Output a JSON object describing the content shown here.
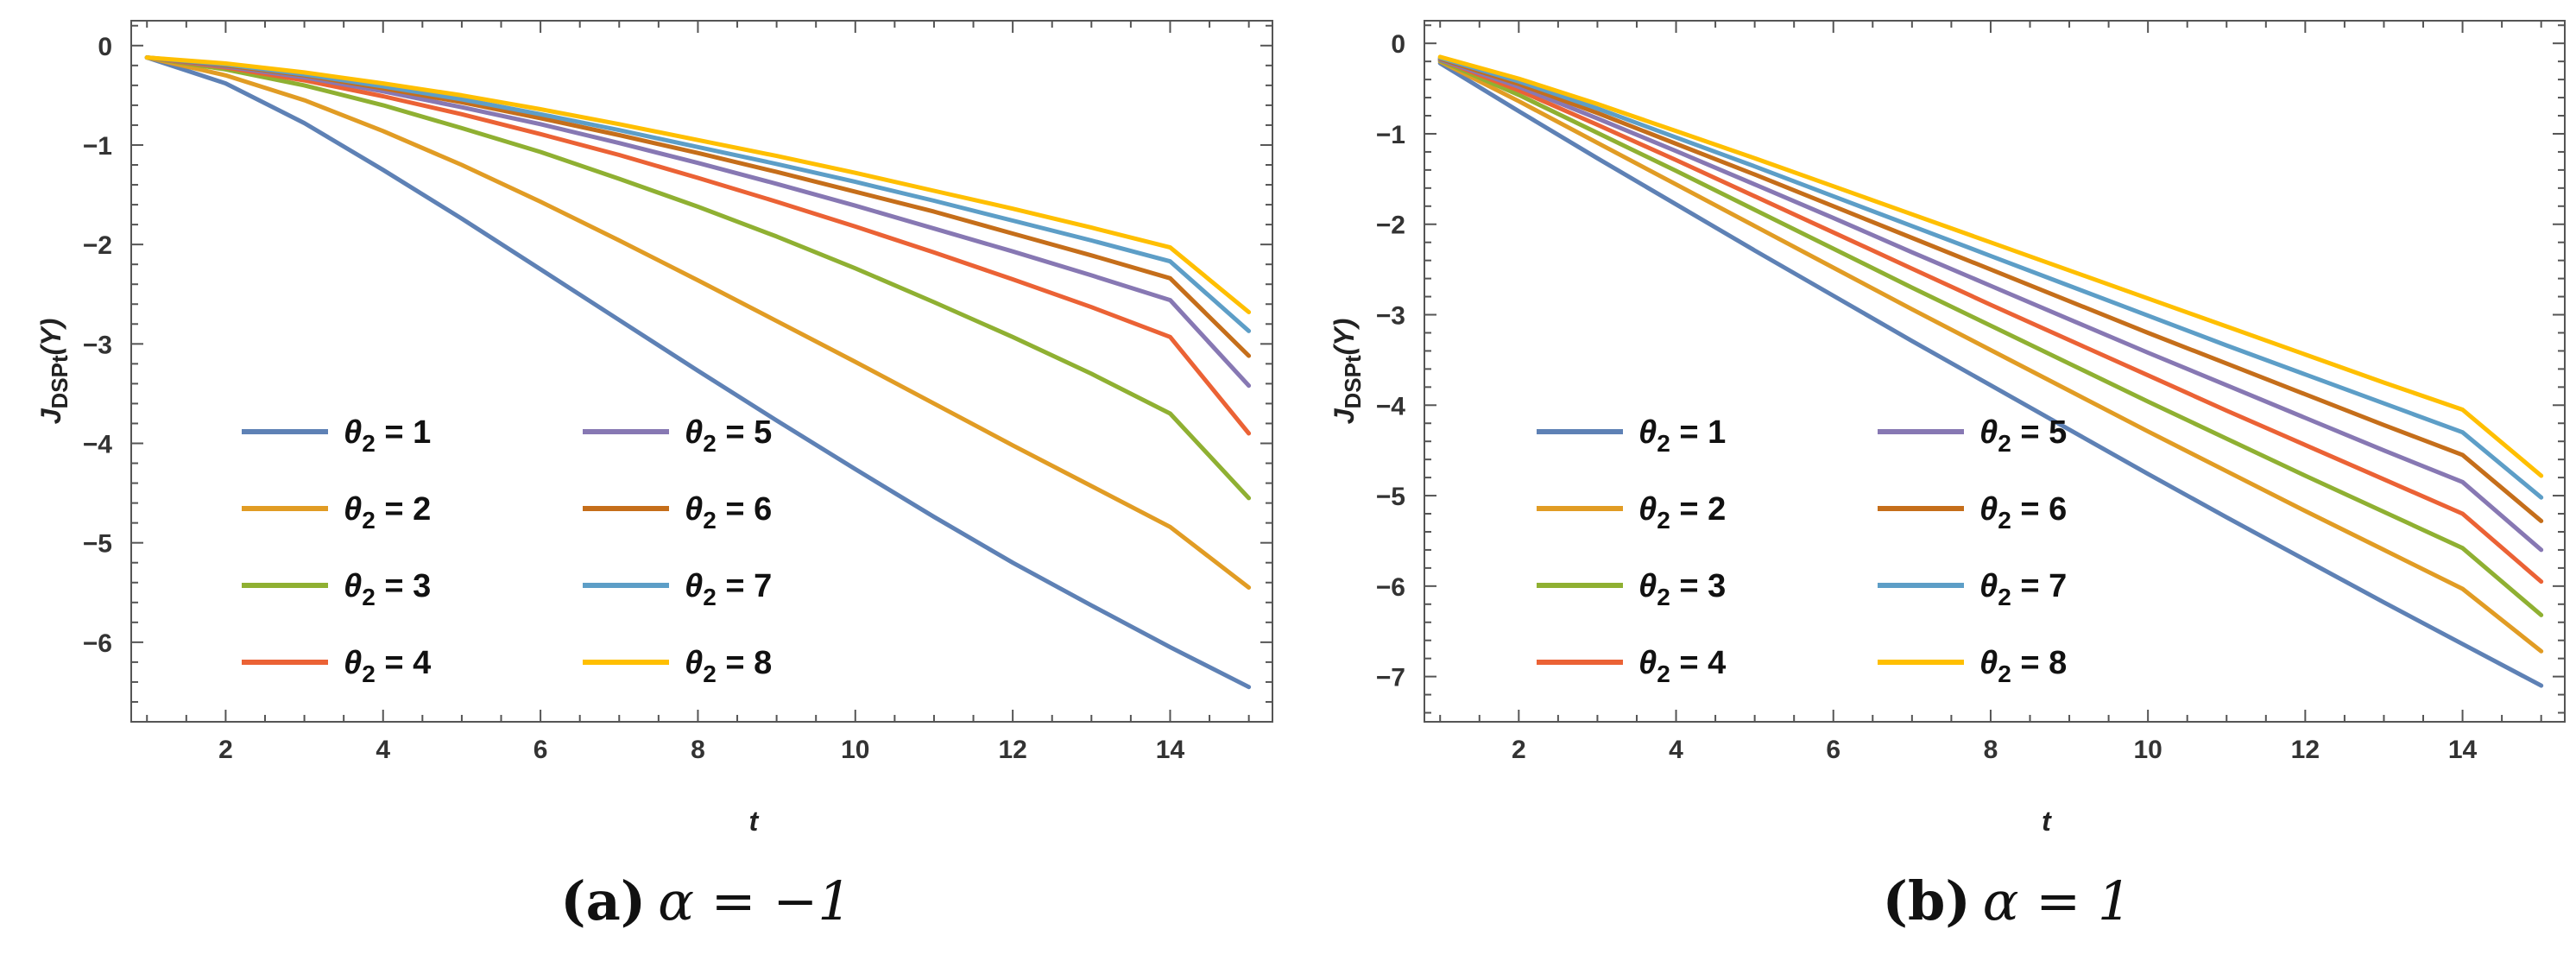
{
  "chart_data": [
    {
      "type": "line",
      "caption_letter": "(a)",
      "caption_math": "α = −1",
      "xlabel": "t",
      "ylabel_main": "J",
      "ylabel_sub": "DSPt",
      "ylabel_arg": "(Y)",
      "xlim": [
        0.8,
        15.3
      ],
      "ylim": [
        -6.8,
        0.25
      ],
      "xticks": [
        2,
        4,
        6,
        8,
        10,
        12,
        14
      ],
      "yticks": [
        0,
        -1,
        -2,
        -3,
        -4,
        -5,
        -6
      ],
      "x": [
        1,
        2,
        3,
        4,
        5,
        6,
        7,
        8,
        9,
        10,
        11,
        12,
        13,
        14,
        15
      ],
      "series": [
        {
          "name": "θ2 = 1",
          "symbol": "θ",
          "sub": "2",
          "eq": " = 1",
          "color": "#5e81b5",
          "values": [
            -0.12,
            -0.38,
            -0.78,
            -1.25,
            -1.74,
            -2.25,
            -2.76,
            -3.27,
            -3.77,
            -4.26,
            -4.74,
            -5.2,
            -5.63,
            -6.05,
            -6.45
          ]
        },
        {
          "name": "θ2 = 2",
          "symbol": "θ",
          "sub": "2",
          "eq": " = 2",
          "color": "#e19c24",
          "values": [
            -0.12,
            -0.3,
            -0.55,
            -0.86,
            -1.2,
            -1.57,
            -1.96,
            -2.36,
            -2.77,
            -3.18,
            -3.6,
            -4.02,
            -4.43,
            -4.84,
            -5.45
          ]
        },
        {
          "name": "θ2 = 3",
          "symbol": "θ",
          "sub": "2",
          "eq": " = 3",
          "color": "#8fb032",
          "values": [
            -0.12,
            -0.24,
            -0.4,
            -0.6,
            -0.83,
            -1.07,
            -1.34,
            -1.62,
            -1.92,
            -2.24,
            -2.58,
            -2.93,
            -3.3,
            -3.7,
            -4.55
          ]
        },
        {
          "name": "θ2 = 4",
          "symbol": "θ",
          "sub": "2",
          "eq": " = 4",
          "color": "#eb6235",
          "values": [
            -0.12,
            -0.22,
            -0.35,
            -0.51,
            -0.69,
            -0.89,
            -1.1,
            -1.33,
            -1.57,
            -1.82,
            -2.08,
            -2.35,
            -2.63,
            -2.93,
            -3.9
          ]
        },
        {
          "name": "θ2 = 5",
          "symbol": "θ",
          "sub": "2",
          "eq": " = 5",
          "color": "#8778b3",
          "values": [
            -0.12,
            -0.21,
            -0.32,
            -0.46,
            -0.62,
            -0.79,
            -0.98,
            -1.18,
            -1.39,
            -1.61,
            -1.84,
            -2.07,
            -2.31,
            -2.56,
            -3.42
          ]
        },
        {
          "name": "θ2 = 6",
          "symbol": "θ",
          "sub": "2",
          "eq": " = 6",
          "color": "#c56e1a",
          "values": [
            -0.12,
            -0.2,
            -0.3,
            -0.43,
            -0.57,
            -0.73,
            -0.9,
            -1.08,
            -1.27,
            -1.47,
            -1.67,
            -1.89,
            -2.11,
            -2.34,
            -3.12
          ]
        },
        {
          "name": "θ2 = 7",
          "symbol": "θ",
          "sub": "2",
          "eq": " = 7",
          "color": "#5d9ec7",
          "values": [
            -0.12,
            -0.19,
            -0.29,
            -0.41,
            -0.54,
            -0.69,
            -0.85,
            -1.02,
            -1.19,
            -1.37,
            -1.56,
            -1.76,
            -1.96,
            -2.17,
            -2.87
          ]
        },
        {
          "name": "θ2 = 8",
          "symbol": "θ",
          "sub": "2",
          "eq": " = 8",
          "color": "#ffbf00",
          "values": [
            -0.12,
            -0.18,
            -0.27,
            -0.38,
            -0.5,
            -0.64,
            -0.79,
            -0.95,
            -1.11,
            -1.28,
            -1.46,
            -1.64,
            -1.83,
            -2.03,
            -2.68
          ]
        }
      ]
    },
    {
      "type": "line",
      "caption_letter": "(b)",
      "caption_math": "α = 1",
      "xlabel": "t",
      "ylabel_main": "J",
      "ylabel_sub": "DSPt",
      "ylabel_arg": "(Y)",
      "xlim": [
        0.8,
        15.3
      ],
      "ylim": [
        -7.5,
        0.25
      ],
      "xticks": [
        2,
        4,
        6,
        8,
        10,
        12,
        14
      ],
      "yticks": [
        0,
        -1,
        -2,
        -3,
        -4,
        -5,
        -6,
        -7
      ],
      "x": [
        1,
        2,
        3,
        4,
        5,
        6,
        7,
        8,
        9,
        10,
        11,
        12,
        13,
        14,
        15
      ],
      "series": [
        {
          "name": "θ2 = 1",
          "symbol": "θ",
          "sub": "2",
          "eq": " = 1",
          "color": "#5e81b5",
          "values": [
            -0.22,
            -0.75,
            -1.27,
            -1.78,
            -2.29,
            -2.79,
            -3.29,
            -3.78,
            -4.27,
            -4.76,
            -5.24,
            -5.71,
            -6.18,
            -6.64,
            -7.1
          ]
        },
        {
          "name": "θ2 = 2",
          "symbol": "θ",
          "sub": "2",
          "eq": " = 2",
          "color": "#e19c24",
          "values": [
            -0.2,
            -0.64,
            -1.1,
            -1.56,
            -2.02,
            -2.48,
            -2.94,
            -3.39,
            -3.84,
            -4.29,
            -4.73,
            -5.17,
            -5.6,
            -6.03,
            -6.72
          ]
        },
        {
          "name": "θ2 = 3",
          "symbol": "θ",
          "sub": "2",
          "eq": " = 3",
          "color": "#8fb032",
          "values": [
            -0.19,
            -0.57,
            -0.99,
            -1.41,
            -1.84,
            -2.27,
            -2.7,
            -3.12,
            -3.54,
            -3.96,
            -4.37,
            -4.78,
            -5.18,
            -5.58,
            -6.32
          ]
        },
        {
          "name": "θ2 = 4",
          "symbol": "θ",
          "sub": "2",
          "eq": " = 4",
          "color": "#eb6235",
          "values": [
            -0.18,
            -0.52,
            -0.9,
            -1.29,
            -1.69,
            -2.09,
            -2.49,
            -2.89,
            -3.28,
            -3.67,
            -4.06,
            -4.44,
            -4.82,
            -5.2,
            -5.95
          ]
        },
        {
          "name": "θ2 = 5",
          "symbol": "θ",
          "sub": "2",
          "eq": " = 5",
          "color": "#8778b3",
          "values": [
            -0.18,
            -0.48,
            -0.83,
            -1.19,
            -1.56,
            -1.93,
            -2.31,
            -2.68,
            -3.05,
            -3.42,
            -3.78,
            -4.14,
            -4.5,
            -4.85,
            -5.6
          ]
        },
        {
          "name": "θ2 = 6",
          "symbol": "θ",
          "sub": "2",
          "eq": " = 6",
          "color": "#c56e1a",
          "values": [
            -0.17,
            -0.45,
            -0.77,
            -1.11,
            -1.45,
            -1.8,
            -2.15,
            -2.5,
            -2.85,
            -3.2,
            -3.54,
            -3.88,
            -4.22,
            -4.55,
            -5.28
          ]
        },
        {
          "name": "θ2 = 7",
          "symbol": "θ",
          "sub": "2",
          "eq": " = 7",
          "color": "#5d9ec7",
          "values": [
            -0.16,
            -0.42,
            -0.72,
            -1.04,
            -1.36,
            -1.69,
            -2.02,
            -2.35,
            -2.68,
            -3.01,
            -3.34,
            -3.66,
            -3.98,
            -4.3,
            -5.02
          ]
        },
        {
          "name": "θ2 = 8",
          "symbol": "θ",
          "sub": "2",
          "eq": " = 8",
          "color": "#ffbf00",
          "values": [
            -0.15,
            -0.39,
            -0.67,
            -0.97,
            -1.27,
            -1.58,
            -1.89,
            -2.2,
            -2.51,
            -2.82,
            -3.13,
            -3.44,
            -3.75,
            -4.05,
            -4.78
          ]
        }
      ]
    }
  ]
}
